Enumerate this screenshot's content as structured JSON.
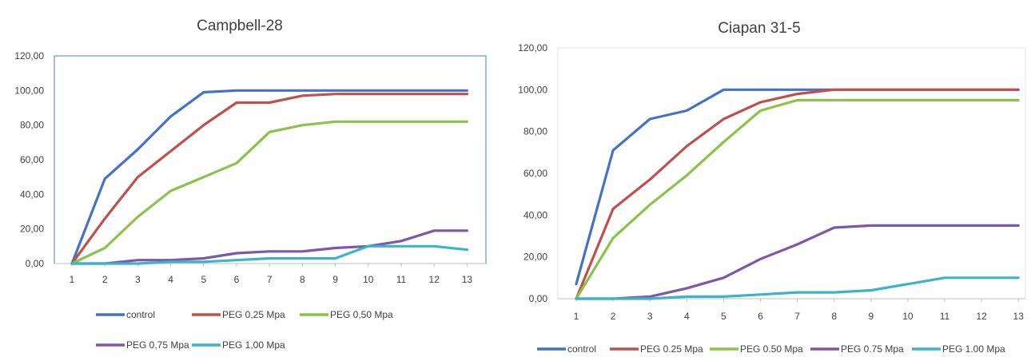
{
  "colors": {
    "control": "#4472C4",
    "peg025": "#C0504D",
    "peg050": "#8BC34A",
    "peg075": "#7E57A6",
    "peg100": "#3CB4C8",
    "frame": "#4A7FC1",
    "text": "#404040"
  },
  "chart_data": [
    {
      "type": "line",
      "title": "Campbell-28",
      "categories": [
        "1",
        "2",
        "3",
        "4",
        "5",
        "6",
        "7",
        "8",
        "9",
        "10",
        "11",
        "12",
        "13"
      ],
      "ylim": [
        0,
        120
      ],
      "yticks": [
        "0,00",
        "20,00",
        "40,00",
        "60,00",
        "80,00",
        "100,00",
        "120,00"
      ],
      "grid": false,
      "legend_position": "bottom",
      "series": [
        {
          "name": "control",
          "values": [
            0,
            49,
            66,
            85,
            99,
            100,
            100,
            100,
            100,
            100,
            100,
            100,
            100
          ]
        },
        {
          "name": "PEG 0,25 Mpa",
          "values": [
            0,
            26,
            50,
            65,
            80,
            93,
            93,
            97,
            98,
            98,
            98,
            98,
            98
          ]
        },
        {
          "name": "PEG 0,50 Mpa",
          "values": [
            0,
            9,
            27,
            42,
            50,
            58,
            76,
            80,
            82,
            82,
            82,
            82,
            82
          ]
        },
        {
          "name": "PEG 0,75 Mpa",
          "values": [
            0,
            0,
            2,
            2,
            3,
            6,
            7,
            7,
            9,
            10,
            13,
            19,
            19
          ]
        },
        {
          "name": "PEG 1,00 Mpa",
          "values": [
            0,
            0,
            0,
            1,
            1,
            2,
            3,
            3,
            3,
            10,
            10,
            10,
            8
          ]
        }
      ]
    },
    {
      "type": "line",
      "title": "Ciapan 31-5",
      "categories": [
        "1",
        "2",
        "3",
        "4",
        "5",
        "6",
        "7",
        "8",
        "9",
        "10",
        "11",
        "12",
        "13"
      ],
      "ylim": [
        0,
        120
      ],
      "yticks": [
        "0,00",
        "20,00",
        "40,00",
        "60,00",
        "80,00",
        "100,00",
        "120,00"
      ],
      "grid": false,
      "legend_position": "bottom",
      "series": [
        {
          "name": "control",
          "values": [
            7,
            71,
            86,
            90,
            100,
            100,
            100,
            100,
            100,
            100,
            100,
            100,
            100
          ]
        },
        {
          "name": "PEG 0.25 Mpa",
          "values": [
            0,
            43,
            57,
            73,
            86,
            94,
            98,
            100,
            100,
            100,
            100,
            100,
            100
          ]
        },
        {
          "name": "PEG 0.50 Mpa",
          "values": [
            0,
            29,
            45,
            59,
            75,
            90,
            95,
            95,
            95,
            95,
            95,
            95,
            95
          ]
        },
        {
          "name": "PEG 0.75 Mpa",
          "values": [
            0,
            0,
            1,
            5,
            10,
            19,
            26,
            34,
            35,
            35,
            35,
            35,
            35
          ]
        },
        {
          "name": "PEG 1.00 Mpa",
          "values": [
            0,
            0,
            0,
            1,
            1,
            2,
            3,
            3,
            4,
            7,
            10,
            10,
            10
          ]
        }
      ]
    }
  ]
}
